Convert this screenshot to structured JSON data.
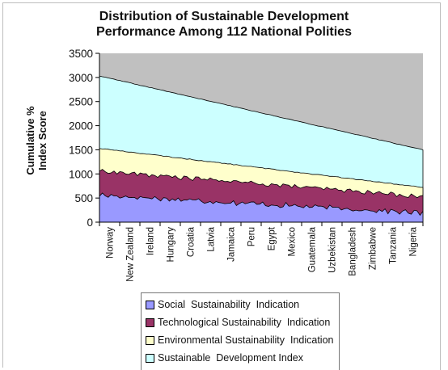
{
  "chart_data": {
    "type": "area",
    "stacked": true,
    "title": "Distribution of Sustainable Development Performance Among 112 National Polities",
    "title_lines": [
      "Distribution of Sustainable Development",
      "Performance Among 112 National Polities"
    ],
    "ylabel": "Cumulative % Index Score",
    "xlabel": "",
    "ylim": [
      0,
      3500
    ],
    "yticks": [
      0,
      500,
      1000,
      1500,
      2000,
      2500,
      3000,
      3500
    ],
    "n_countries": 112,
    "x_tick_labels": [
      "Norway",
      "New Zealand",
      "Ireland",
      "Hungary",
      "Croatia",
      "Latvia",
      "Jamaica",
      "Peru",
      "Egypt",
      "Mexico",
      "Guatemala",
      "Uzbekistan",
      "Bangladesh",
      "Zimbabwe",
      "Tanzania",
      "Nigeria"
    ],
    "grid": false,
    "legend_position": "bottom",
    "plot_background": "#c0c0c0",
    "series": [
      {
        "name": "Social  Sustainability  Indication",
        "color": "#9999ff",
        "start": 560,
        "end": 190,
        "noise": 45
      },
      {
        "name": "Technological Sustainability  Indication",
        "color": "#993366",
        "start": 1060,
        "end": 530,
        "noise": 35
      },
      {
        "name": "Environmental Sustainability  Indication",
        "color": "#ffffcc",
        "start": 1530,
        "end": 720,
        "noise": 8
      },
      {
        "name": "Sustainable  Development Index",
        "color": "#ccffff",
        "start": 3030,
        "end": 1500,
        "noise": 5
      }
    ]
  }
}
